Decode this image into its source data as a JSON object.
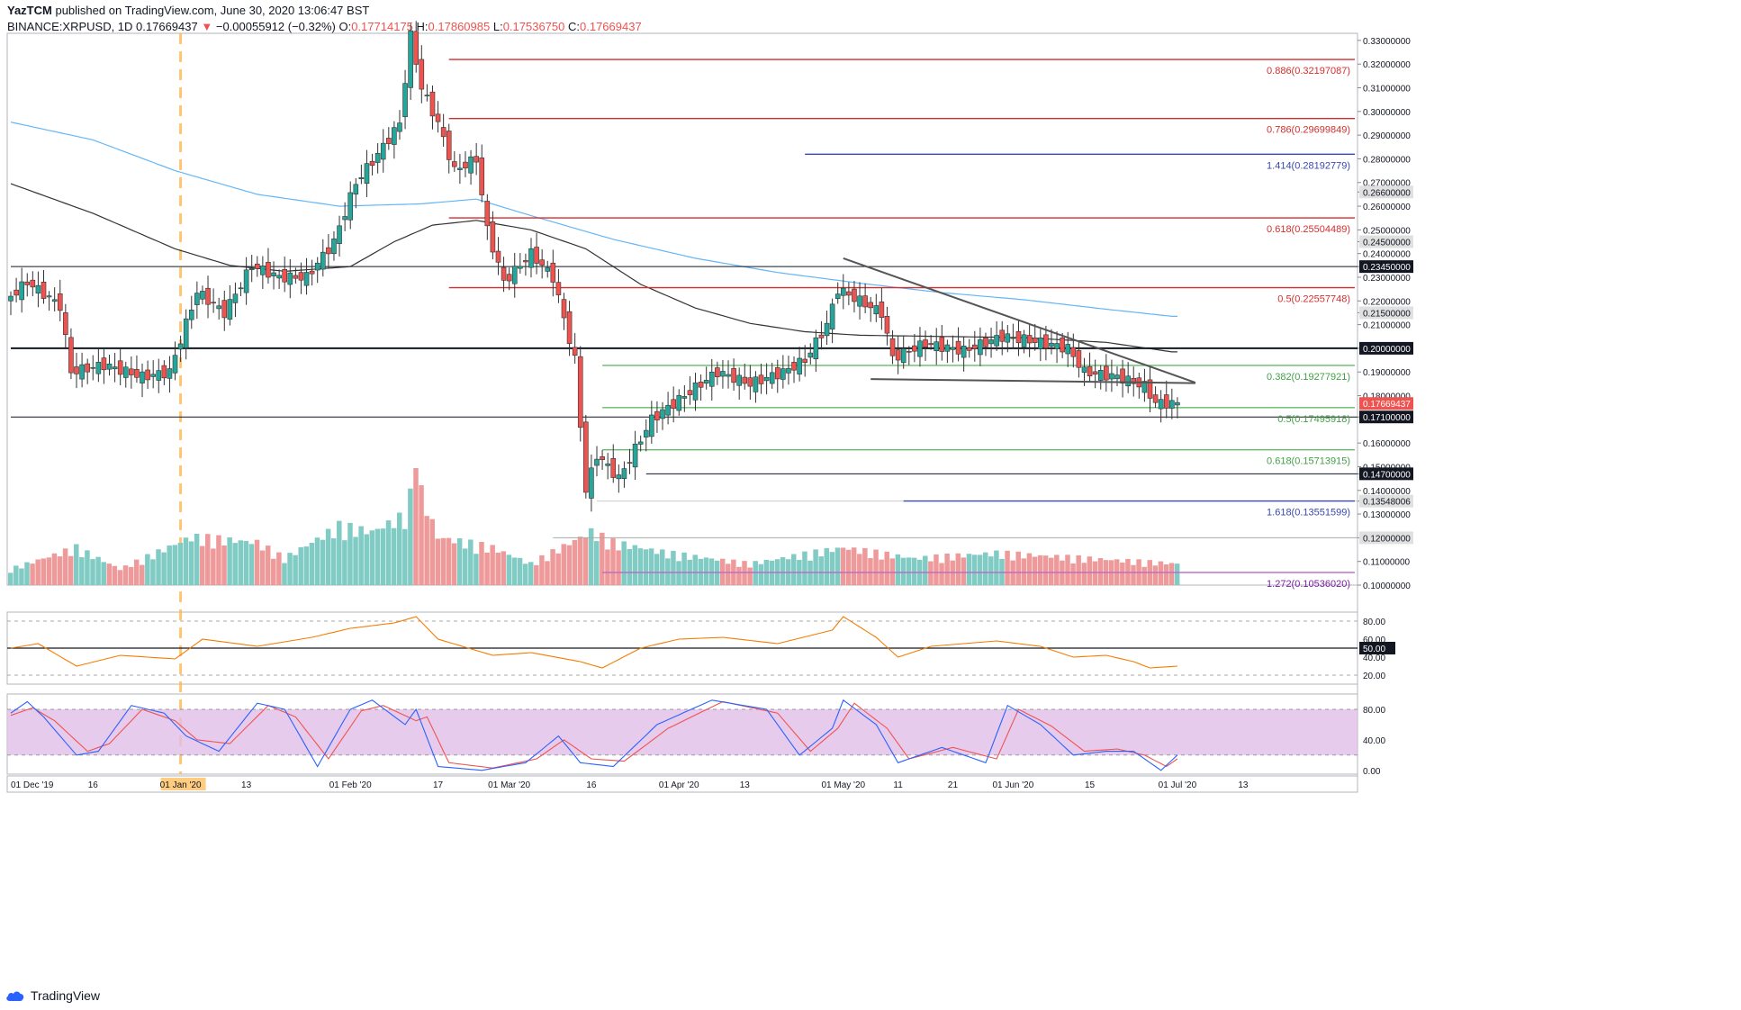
{
  "header": {
    "publisher": "YazTCM",
    "published_text": "published on TradingView.com, June 30, 2020 13:06:47 BST",
    "symbol": "BINANCE:XRPUSD, 1D",
    "last": "0.17669437",
    "change": "−0.00055912 (−0.32%)",
    "open_label": "O:",
    "open": "0.17714175",
    "high_label": "H:",
    "high": "0.17860985",
    "low_label": "L:",
    "low": "0.17536750",
    "close_label": "C:",
    "close": "0.17669437",
    "down_arrow": "▼"
  },
  "footer": {
    "brand": "TradingView"
  },
  "colors": {
    "up": "#26a69a",
    "down": "#ef5350",
    "fib_red": "#d32f2f",
    "fib_green": "#66bb6a",
    "fib_blue": "#3949ab",
    "ma200": "#64b5f6",
    "ma100": "#333333",
    "rsi": "#f57c00",
    "stoch_k": "#2962ff",
    "stoch_d": "#ef5350",
    "stoch_band": "#e1bee7",
    "vol_up": "#80cbc4",
    "vol_down": "#ef9a9a"
  },
  "chart_data": {
    "type": "candlestick",
    "price_axis": {
      "ylim": [
        0.1,
        0.333
      ],
      "ticks": [
        "0.33000000",
        "0.32000000",
        "0.31000000",
        "0.30000000",
        "0.29000000",
        "0.28000000",
        "0.27000000",
        "0.26600000",
        "0.26000000",
        "0.25000000",
        "0.24500000",
        "0.24000000",
        "0.23450000",
        "0.23000000",
        "0.22000000",
        "0.21500000",
        "0.21000000",
        "0.20000000",
        "0.19000000",
        "0.18000000",
        "0.17669437",
        "0.17100000",
        "0.16000000",
        "0.15000000",
        "0.14700000",
        "0.14000000",
        "0.13548006",
        "0.13000000",
        "0.12000000",
        "0.11000000",
        "0.10000000"
      ],
      "highlighted_ticks": [
        "0.23450000",
        "0.21500000",
        "0.20000000",
        "0.17100000",
        "0.14700000",
        "0.13548006",
        "0.12000000",
        "0.24500000",
        "0.26600000"
      ],
      "current_price_tag": "0.17669437"
    },
    "time_axis": {
      "labels": [
        "01 Dec '19",
        "16",
        "01 Jan '20",
        "13",
        "01 Feb '20",
        "17",
        "01 Mar '20",
        "16",
        "01 Apr '20",
        "13",
        "01 May '20",
        "11",
        "21",
        "01 Jun '20",
        "15",
        "01 Jul '20",
        "13"
      ],
      "label_days": [
        0,
        15,
        31,
        43,
        62,
        78,
        91,
        106,
        122,
        134,
        152,
        162,
        172,
        183,
        197,
        213,
        225
      ],
      "highlighted_label": "01 Jan '20",
      "day_count": 214,
      "date_marker_day": 31
    },
    "horizontal_levels": [
      {
        "label": "0.886",
        "value": "0.32197087",
        "price": 0.32197,
        "kind": "fib_red",
        "from_day": 80
      },
      {
        "label": "0.786",
        "value": "0.29699849",
        "price": 0.297,
        "kind": "fib_red",
        "from_day": 80
      },
      {
        "label": "1.414",
        "value": "0.28192779",
        "price": 0.28193,
        "kind": "fib_blue",
        "from_day": 145
      },
      {
        "label": "0.618",
        "value": "0.25504489",
        "price": 0.25504,
        "kind": "fib_red",
        "from_day": 80
      },
      {
        "label": "0.5",
        "value": "0.22557748",
        "price": 0.22558,
        "kind": "fib_red",
        "from_day": 80
      },
      {
        "label": "0.382",
        "value": "0.19277921",
        "price": 0.19278,
        "kind": "fib_green",
        "from_day": 108
      },
      {
        "label": "0.5",
        "value": "0.17495918",
        "price": 0.17496,
        "kind": "fib_green",
        "from_day": 108
      },
      {
        "label": "0.618",
        "value": "0.15713915",
        "price": 0.15714,
        "kind": "fib_green",
        "from_day": 108
      },
      {
        "label": "1.618",
        "value": "0.13551599",
        "price": 0.13552,
        "kind": "fib_blue",
        "from_day": 163
      },
      {
        "label": "1.272",
        "value": "0.10536020",
        "price": 0.10536,
        "kind": "fib_purple",
        "from_day": 108
      }
    ],
    "sr_levels": [
      {
        "price": 0.2345,
        "from_day": 0,
        "width": 1
      },
      {
        "price": 0.2,
        "from_day": 0,
        "width": 2
      },
      {
        "price": 0.171,
        "from_day": 0,
        "width": 1
      },
      {
        "price": 0.147,
        "from_day": 116,
        "width": 1
      },
      {
        "price": 0.1355,
        "from_day": 107,
        "width": 1,
        "color": "#cccccc"
      },
      {
        "price": 0.12,
        "from_day": 99,
        "width": 1,
        "color": "#aaaaaa"
      }
    ],
    "trendlines": [
      {
        "from": [
          152,
          0.238
        ],
        "to": [
          213,
          0.1855
        ]
      },
      {
        "from": [
          157,
          0.187
        ],
        "to": [
          213,
          0.1853
        ]
      }
    ],
    "ma200": [
      [
        0,
        0.2955
      ],
      [
        15,
        0.288
      ],
      [
        30,
        0.275
      ],
      [
        45,
        0.265
      ],
      [
        60,
        0.26
      ],
      [
        75,
        0.261
      ],
      [
        85,
        0.263
      ],
      [
        95,
        0.256
      ],
      [
        110,
        0.246
      ],
      [
        125,
        0.238
      ],
      [
        140,
        0.232
      ],
      [
        155,
        0.2275
      ],
      [
        170,
        0.2235
      ],
      [
        185,
        0.2205
      ],
      [
        200,
        0.2165
      ],
      [
        212,
        0.2135
      ]
    ],
    "ma100": [
      [
        0,
        0.2695
      ],
      [
        15,
        0.257
      ],
      [
        30,
        0.242
      ],
      [
        40,
        0.235
      ],
      [
        50,
        0.2325
      ],
      [
        62,
        0.2345
      ],
      [
        70,
        0.245
      ],
      [
        77,
        0.252
      ],
      [
        85,
        0.254
      ],
      [
        95,
        0.25
      ],
      [
        105,
        0.242
      ],
      [
        115,
        0.227
      ],
      [
        125,
        0.217
      ],
      [
        135,
        0.2105
      ],
      [
        145,
        0.207
      ],
      [
        155,
        0.2055
      ],
      [
        170,
        0.205
      ],
      [
        185,
        0.2045
      ],
      [
        200,
        0.2025
      ],
      [
        212,
        0.1985
      ]
    ],
    "candles_keypoints": [
      [
        0,
        0.22
      ],
      [
        4,
        0.228
      ],
      [
        10,
        0.218
      ],
      [
        12,
        0.19
      ],
      [
        18,
        0.193
      ],
      [
        25,
        0.188
      ],
      [
        30,
        0.19
      ],
      [
        35,
        0.224
      ],
      [
        40,
        0.215
      ],
      [
        45,
        0.235
      ],
      [
        50,
        0.23
      ],
      [
        55,
        0.23
      ],
      [
        60,
        0.245
      ],
      [
        64,
        0.27
      ],
      [
        68,
        0.282
      ],
      [
        72,
        0.295
      ],
      [
        74,
        0.332
      ],
      [
        76,
        0.31
      ],
      [
        79,
        0.295
      ],
      [
        82,
        0.275
      ],
      [
        86,
        0.28
      ],
      [
        88,
        0.25
      ],
      [
        91,
        0.228
      ],
      [
        96,
        0.24
      ],
      [
        100,
        0.23
      ],
      [
        104,
        0.195
      ],
      [
        106,
        0.14
      ],
      [
        108,
        0.155
      ],
      [
        112,
        0.145
      ],
      [
        118,
        0.17
      ],
      [
        124,
        0.18
      ],
      [
        130,
        0.19
      ],
      [
        136,
        0.185
      ],
      [
        142,
        0.19
      ],
      [
        146,
        0.195
      ],
      [
        150,
        0.21
      ],
      [
        152,
        0.225
      ],
      [
        156,
        0.22
      ],
      [
        160,
        0.215
      ],
      [
        162,
        0.196
      ],
      [
        168,
        0.202
      ],
      [
        175,
        0.199
      ],
      [
        182,
        0.205
      ],
      [
        188,
        0.203
      ],
      [
        194,
        0.2
      ],
      [
        197,
        0.19
      ],
      [
        203,
        0.188
      ],
      [
        208,
        0.184
      ],
      [
        210,
        0.177
      ],
      [
        213,
        0.1767
      ]
    ],
    "volume_keypoints": [
      [
        0,
        0.15
      ],
      [
        12,
        0.35
      ],
      [
        20,
        0.15
      ],
      [
        33,
        0.45
      ],
      [
        45,
        0.4
      ],
      [
        50,
        0.25
      ],
      [
        60,
        0.55
      ],
      [
        66,
        0.5
      ],
      [
        72,
        0.65
      ],
      [
        74,
        1.0
      ],
      [
        78,
        0.45
      ],
      [
        88,
        0.35
      ],
      [
        95,
        0.2
      ],
      [
        106,
        0.5
      ],
      [
        110,
        0.4
      ],
      [
        120,
        0.3
      ],
      [
        135,
        0.2
      ],
      [
        152,
        0.35
      ],
      [
        165,
        0.25
      ],
      [
        180,
        0.3
      ],
      [
        213,
        0.2
      ]
    ],
    "volume_spike_day": 74,
    "rsi": {
      "ylim": [
        10,
        90
      ],
      "ticks": [
        "80.00",
        "60.00",
        "50.00",
        "40.00",
        "20.00"
      ],
      "keypoints": [
        [
          0,
          50
        ],
        [
          5,
          55
        ],
        [
          12,
          30
        ],
        [
          20,
          42
        ],
        [
          30,
          38
        ],
        [
          35,
          60
        ],
        [
          45,
          52
        ],
        [
          55,
          62
        ],
        [
          62,
          72
        ],
        [
          70,
          78
        ],
        [
          74,
          85
        ],
        [
          78,
          60
        ],
        [
          88,
          42
        ],
        [
          95,
          45
        ],
        [
          104,
          35
        ],
        [
          108,
          28
        ],
        [
          115,
          50
        ],
        [
          122,
          60
        ],
        [
          130,
          62
        ],
        [
          140,
          55
        ],
        [
          150,
          70
        ],
        [
          152,
          85
        ],
        [
          158,
          62
        ],
        [
          162,
          40
        ],
        [
          168,
          52
        ],
        [
          180,
          58
        ],
        [
          188,
          52
        ],
        [
          194,
          40
        ],
        [
          200,
          42
        ],
        [
          205,
          35
        ],
        [
          208,
          28
        ],
        [
          213,
          30
        ]
      ]
    },
    "stoch_rsi": {
      "ylim": [
        -5,
        100
      ],
      "ticks": [
        "80.00",
        "40.00",
        "0.00"
      ],
      "band": [
        20,
        80
      ],
      "k_keypoints": [
        [
          0,
          75
        ],
        [
          3,
          90
        ],
        [
          6,
          70
        ],
        [
          12,
          20
        ],
        [
          16,
          25
        ],
        [
          22,
          85
        ],
        [
          28,
          75
        ],
        [
          32,
          45
        ],
        [
          38,
          25
        ],
        [
          45,
          88
        ],
        [
          50,
          80
        ],
        [
          56,
          5
        ],
        [
          62,
          80
        ],
        [
          66,
          92
        ],
        [
          72,
          60
        ],
        [
          74,
          80
        ],
        [
          78,
          5
        ],
        [
          86,
          0
        ],
        [
          94,
          10
        ],
        [
          100,
          45
        ],
        [
          104,
          10
        ],
        [
          110,
          5
        ],
        [
          118,
          60
        ],
        [
          128,
          92
        ],
        [
          138,
          80
        ],
        [
          144,
          20
        ],
        [
          150,
          55
        ],
        [
          152,
          92
        ],
        [
          158,
          60
        ],
        [
          162,
          10
        ],
        [
          170,
          30
        ],
        [
          178,
          10
        ],
        [
          182,
          85
        ],
        [
          188,
          60
        ],
        [
          194,
          20
        ],
        [
          200,
          25
        ],
        [
          205,
          25
        ],
        [
          210,
          0
        ],
        [
          213,
          20
        ]
      ],
      "d_keypoints": [
        [
          0,
          72
        ],
        [
          4,
          82
        ],
        [
          8,
          65
        ],
        [
          14,
          25
        ],
        [
          18,
          35
        ],
        [
          24,
          80
        ],
        [
          30,
          65
        ],
        [
          34,
          40
        ],
        [
          40,
          35
        ],
        [
          47,
          85
        ],
        [
          52,
          70
        ],
        [
          58,
          15
        ],
        [
          64,
          78
        ],
        [
          68,
          85
        ],
        [
          74,
          65
        ],
        [
          76,
          70
        ],
        [
          80,
          10
        ],
        [
          88,
          3
        ],
        [
          96,
          15
        ],
        [
          101,
          40
        ],
        [
          106,
          15
        ],
        [
          112,
          12
        ],
        [
          120,
          55
        ],
        [
          130,
          90
        ],
        [
          140,
          75
        ],
        [
          146,
          25
        ],
        [
          151,
          55
        ],
        [
          154,
          88
        ],
        [
          160,
          55
        ],
        [
          164,
          15
        ],
        [
          172,
          30
        ],
        [
          180,
          15
        ],
        [
          184,
          80
        ],
        [
          190,
          58
        ],
        [
          196,
          25
        ],
        [
          202,
          28
        ],
        [
          207,
          20
        ],
        [
          211,
          5
        ],
        [
          213,
          15
        ]
      ]
    },
    "rsi_tag": "50.00"
  }
}
